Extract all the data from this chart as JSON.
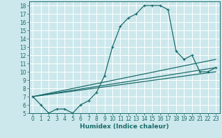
{
  "xlabel": "Humidex (Indice chaleur)",
  "bg_color": "#cce8ec",
  "line_color": "#1a6b6b",
  "grid_color": "#ffffff",
  "xlim": [
    -0.5,
    23.5
  ],
  "ylim": [
    5,
    18.5
  ],
  "xticks": [
    0,
    1,
    2,
    3,
    4,
    5,
    6,
    7,
    8,
    9,
    10,
    11,
    12,
    13,
    14,
    15,
    16,
    17,
    18,
    19,
    20,
    21,
    22,
    23
  ],
  "yticks": [
    5,
    6,
    7,
    8,
    9,
    10,
    11,
    12,
    13,
    14,
    15,
    16,
    17,
    18
  ],
  "main_line_x": [
    0,
    1,
    2,
    3,
    4,
    5,
    6,
    7,
    8,
    9,
    10,
    11,
    12,
    13,
    14,
    15,
    16,
    17,
    18,
    19,
    20,
    21,
    22,
    23
  ],
  "main_line_y": [
    7,
    6,
    5,
    5.5,
    5.5,
    5,
    6,
    6.5,
    7.5,
    9.5,
    13,
    15.5,
    16.5,
    17,
    18,
    18,
    18,
    17.5,
    12.5,
    11.5,
    12,
    10,
    10,
    10.5
  ],
  "straight_lines": [
    {
      "x": [
        0,
        23
      ],
      "y": [
        7,
        10.5
      ]
    },
    {
      "x": [
        0,
        23
      ],
      "y": [
        7,
        10.0
      ]
    },
    {
      "x": [
        0,
        23
      ],
      "y": [
        7,
        11.5
      ]
    }
  ],
  "tick_fontsize": 5.5,
  "xlabel_fontsize": 6.5,
  "marker_size": 3.5,
  "line_width": 0.9
}
